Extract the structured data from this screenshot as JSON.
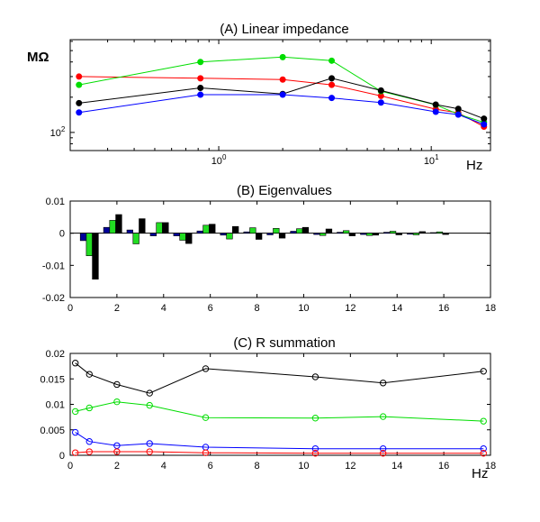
{
  "chart_data": [
    {
      "type": "line",
      "title": "(A) Linear impedance",
      "xlabel": "Hz",
      "ylabel": "MΩ",
      "xscale": "log",
      "yscale": "log",
      "xlim": [
        0.2,
        19
      ],
      "ylim": [
        70,
        620
      ],
      "x_ticks": [
        {
          "value": 1,
          "label_base": "10",
          "label_exp": "0"
        },
        {
          "value": 10,
          "label_base": "10",
          "label_exp": "1"
        }
      ],
      "y_ticks": [
        {
          "value": 100,
          "label_base": "10",
          "label_exp": "2"
        }
      ],
      "x": [
        0.22,
        0.82,
        2.0,
        3.4,
        5.8,
        10.5,
        13.4,
        17.7
      ],
      "series": [
        {
          "name": "red",
          "color": "#ff0000",
          "values": [
            300,
            290,
            283,
            255,
            205,
            158,
            147,
            112
          ]
        },
        {
          "name": "green",
          "color": "#00dd00",
          "values": [
            255,
            400,
            440,
            410,
            225,
            172,
            143,
            122
          ]
        },
        {
          "name": "black",
          "color": "#000000",
          "values": [
            178,
            240,
            213,
            290,
            228,
            173,
            159,
            131
          ]
        },
        {
          "name": "blue",
          "color": "#0000ff",
          "values": [
            148,
            210,
            210,
            197,
            180,
            150,
            142,
            117
          ]
        }
      ]
    },
    {
      "type": "bar",
      "title": "(B) Eigenvalues",
      "xlabel": "",
      "xlim": [
        0,
        18
      ],
      "ylim": [
        -0.02,
        0.01
      ],
      "x_ticks": [
        0,
        2,
        4,
        6,
        8,
        10,
        12,
        14,
        16,
        18
      ],
      "y_ticks": [
        {
          "value": 0.01,
          "label": "0.01"
        },
        {
          "value": 0,
          "label": "0"
        },
        {
          "value": -0.01,
          "label": "-0.01"
        },
        {
          "value": -0.02,
          "label": "-0.02"
        }
      ],
      "positions": [
        0.82,
        1.82,
        2.82,
        3.82,
        4.82,
        5.82,
        6.82,
        7.82,
        8.82,
        9.82,
        10.82,
        11.82,
        12.82,
        13.82,
        14.82,
        15.82
      ],
      "series": [
        {
          "name": "blue",
          "color": "#000099",
          "values": [
            -0.0023,
            0.0018,
            0.001,
            -0.0008,
            -0.0008,
            0.0007,
            -0.0006,
            0.0004,
            -0.0005,
            0.0006,
            -0.0004,
            0.0003,
            -0.0004,
            0.0003,
            -0.0003,
            0.0002
          ]
        },
        {
          "name": "green",
          "color": "#22dd22",
          "values": [
            -0.007,
            0.004,
            -0.0033,
            0.0033,
            -0.0022,
            0.0025,
            -0.0018,
            0.0017,
            0.0015,
            0.0014,
            -0.0007,
            0.0008,
            -0.0007,
            0.0006,
            -0.0005,
            0.0004
          ]
        },
        {
          "name": "black",
          "color": "#000000",
          "values": [
            -0.0143,
            0.0058,
            0.0045,
            0.0033,
            -0.0032,
            0.0028,
            0.0021,
            -0.0019,
            -0.0015,
            0.0018,
            0.0013,
            -0.0008,
            -0.0006,
            -0.0005,
            0.0005,
            -0.0004
          ]
        }
      ]
    },
    {
      "type": "line",
      "title": "(C) R summation",
      "xlabel": "Hz",
      "xlim": [
        0,
        18
      ],
      "ylim": [
        0,
        0.02
      ],
      "x_ticks": [
        0,
        2,
        4,
        6,
        8,
        10,
        12,
        14,
        16,
        18
      ],
      "y_ticks": [
        {
          "value": 0,
          "label": "0"
        },
        {
          "value": 0.005,
          "label": "0.005"
        },
        {
          "value": 0.01,
          "label": "0.01"
        },
        {
          "value": 0.015,
          "label": "0.015"
        },
        {
          "value": 0.02,
          "label": "0.02"
        }
      ],
      "x": [
        0.22,
        0.82,
        2.0,
        3.4,
        5.8,
        10.5,
        13.4,
        17.7
      ],
      "series": [
        {
          "name": "black",
          "color": "#000000",
          "values": [
            0.0181,
            0.0159,
            0.0139,
            0.0122,
            0.017,
            0.0154,
            0.0142,
            0.0165
          ]
        },
        {
          "name": "green",
          "color": "#00dd00",
          "values": [
            0.0086,
            0.0093,
            0.0105,
            0.0098,
            0.0074,
            0.0073,
            0.0076,
            0.0067
          ]
        },
        {
          "name": "blue",
          "color": "#0000ff",
          "values": [
            0.0045,
            0.0027,
            0.0019,
            0.0023,
            0.0016,
            0.0013,
            0.0013,
            0.0013
          ]
        },
        {
          "name": "red",
          "color": "#ff0000",
          "values": [
            0.0005,
            0.0007,
            0.0007,
            0.0007,
            0.0005,
            0.0004,
            0.0004,
            0.0004
          ]
        }
      ]
    }
  ]
}
